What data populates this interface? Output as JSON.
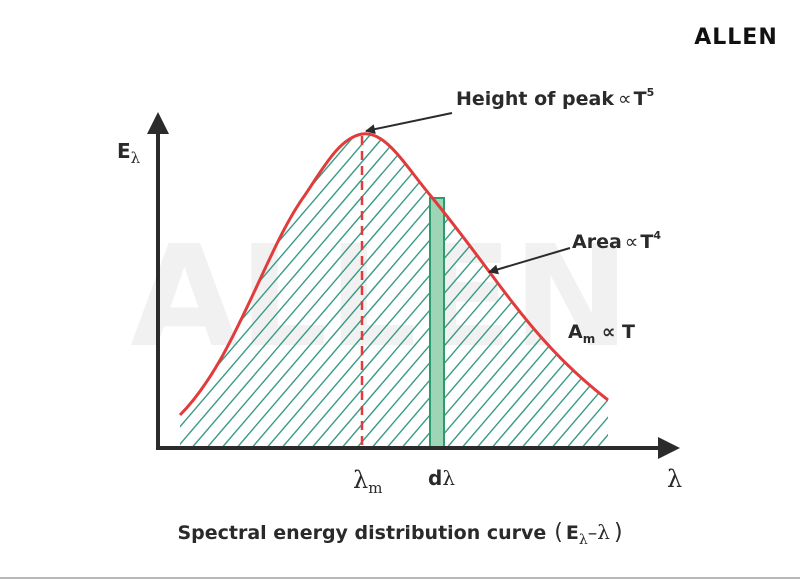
{
  "brand": {
    "logo_text": "ALLEN",
    "watermark_text": "ALLEN"
  },
  "colors": {
    "curve": "#e23b3b",
    "hatch": "#3a9a86",
    "strip_fill": "#9dd6b6",
    "strip_line": "#2f9a6a",
    "axis": "#2b2b2b",
    "watermark": "#f1f1f1"
  },
  "axes": {
    "y_label": {
      "main": "E",
      "sub": "λ"
    },
    "x_label": "λ"
  },
  "markers": {
    "lambda_m": {
      "main": "λ",
      "sub": "m"
    },
    "d_lambda": {
      "d": "d",
      "lambda": "λ"
    }
  },
  "annotations": {
    "peak": {
      "text": "Height of peak",
      "prop": "∝",
      "var": "T",
      "exp": "5"
    },
    "area": {
      "text": "Area",
      "prop": "∝",
      "var": "T",
      "exp": "4"
    },
    "am": {
      "main": "A",
      "sub": "m",
      "rest": " ∝ T"
    }
  },
  "caption": {
    "text": "Spectral energy distribution curve",
    "open": "(",
    "e": "E",
    "sub": "λ",
    "dash": "–",
    "lambda": "λ",
    "close": ")"
  }
}
